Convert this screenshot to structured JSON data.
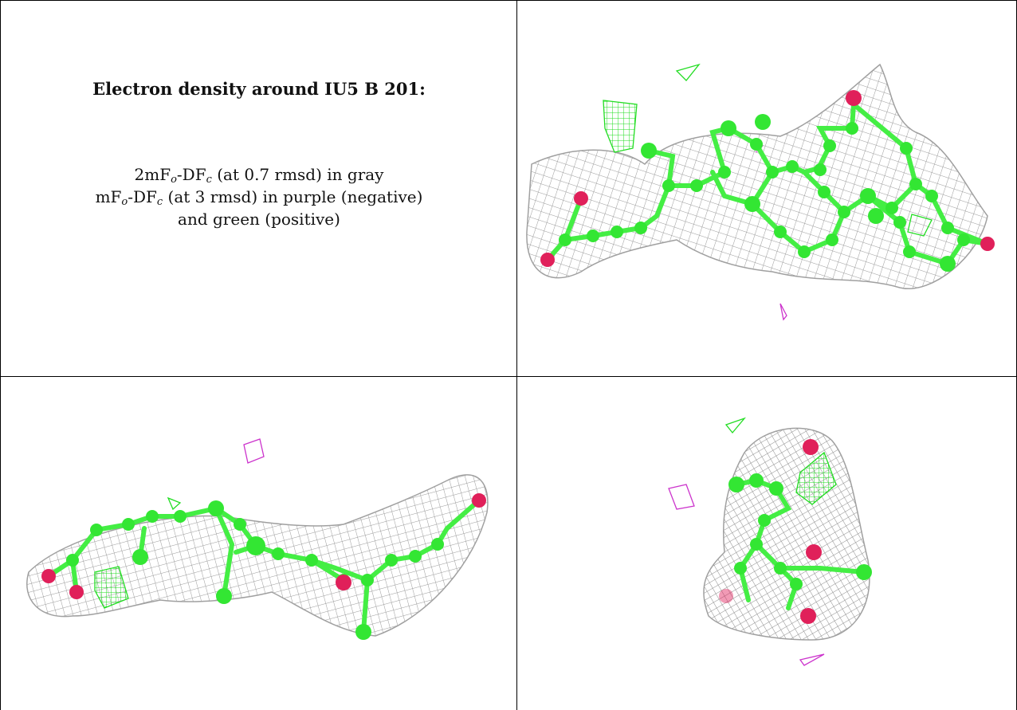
{
  "caption": {
    "title": "Electron density around IU5 B 201:",
    "line1": {
      "prefix": "2mF",
      "sub1": "o",
      "mid": "-DF",
      "sub2": "c",
      "suffix": " (at 0.7 rmsd) in gray"
    },
    "line2": {
      "prefix": "mF",
      "sub1": "o",
      "mid": "-DF",
      "sub2": "c",
      "suffix": " (at 3 rmsd) in purple (negative)"
    },
    "line3": "and green (positive)"
  },
  "views": [
    {
      "name": "top-right-view",
      "atom_color": "#33e633",
      "oxygen_color": "#e0205a",
      "mesh_color": "#999999",
      "neg_color": "#cc33cc",
      "pos_color": "#22dd22"
    },
    {
      "name": "bottom-left-view"
    },
    {
      "name": "bottom-right-view"
    }
  ]
}
